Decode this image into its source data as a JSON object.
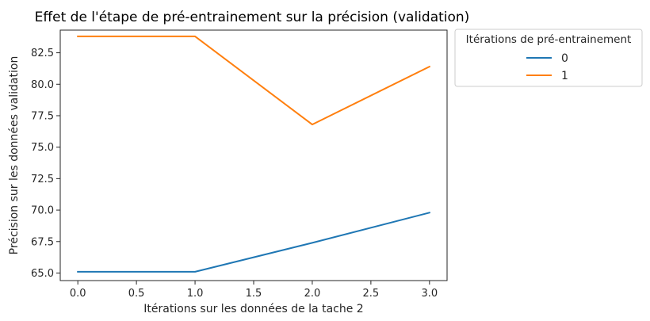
{
  "chart_data": {
    "type": "line",
    "title": "Effet de l'étape de pré-entrainement sur la précision (validation)",
    "xlabel": "Itérations sur les données de la tache 2",
    "ylabel": "Précision sur les données validation",
    "xlim": [
      -0.15,
      3.15
    ],
    "ylim": [
      64.4,
      84.3
    ],
    "xticks": [
      0.0,
      0.5,
      1.0,
      1.5,
      2.0,
      2.5,
      3.0
    ],
    "xtick_labels": [
      "0.0",
      "0.5",
      "1.0",
      "1.5",
      "2.0",
      "2.5",
      "3.0"
    ],
    "yticks": [
      65.0,
      67.5,
      70.0,
      72.5,
      75.0,
      77.5,
      80.0,
      82.5
    ],
    "ytick_labels": [
      "65.0",
      "67.5",
      "70.0",
      "72.5",
      "75.0",
      "77.5",
      "80.0",
      "82.5"
    ],
    "grid": false,
    "legend": {
      "title": "Itérations de pré-entrainement",
      "placement": "outside-top-right"
    },
    "x": [
      0,
      1,
      2,
      3
    ],
    "series": [
      {
        "name": "0",
        "color": "#1f77b4",
        "values": [
          65.1,
          65.1,
          67.4,
          69.8
        ]
      },
      {
        "name": "1",
        "color": "#ff7f0e",
        "values": [
          83.8,
          83.8,
          76.8,
          81.4
        ]
      }
    ]
  }
}
